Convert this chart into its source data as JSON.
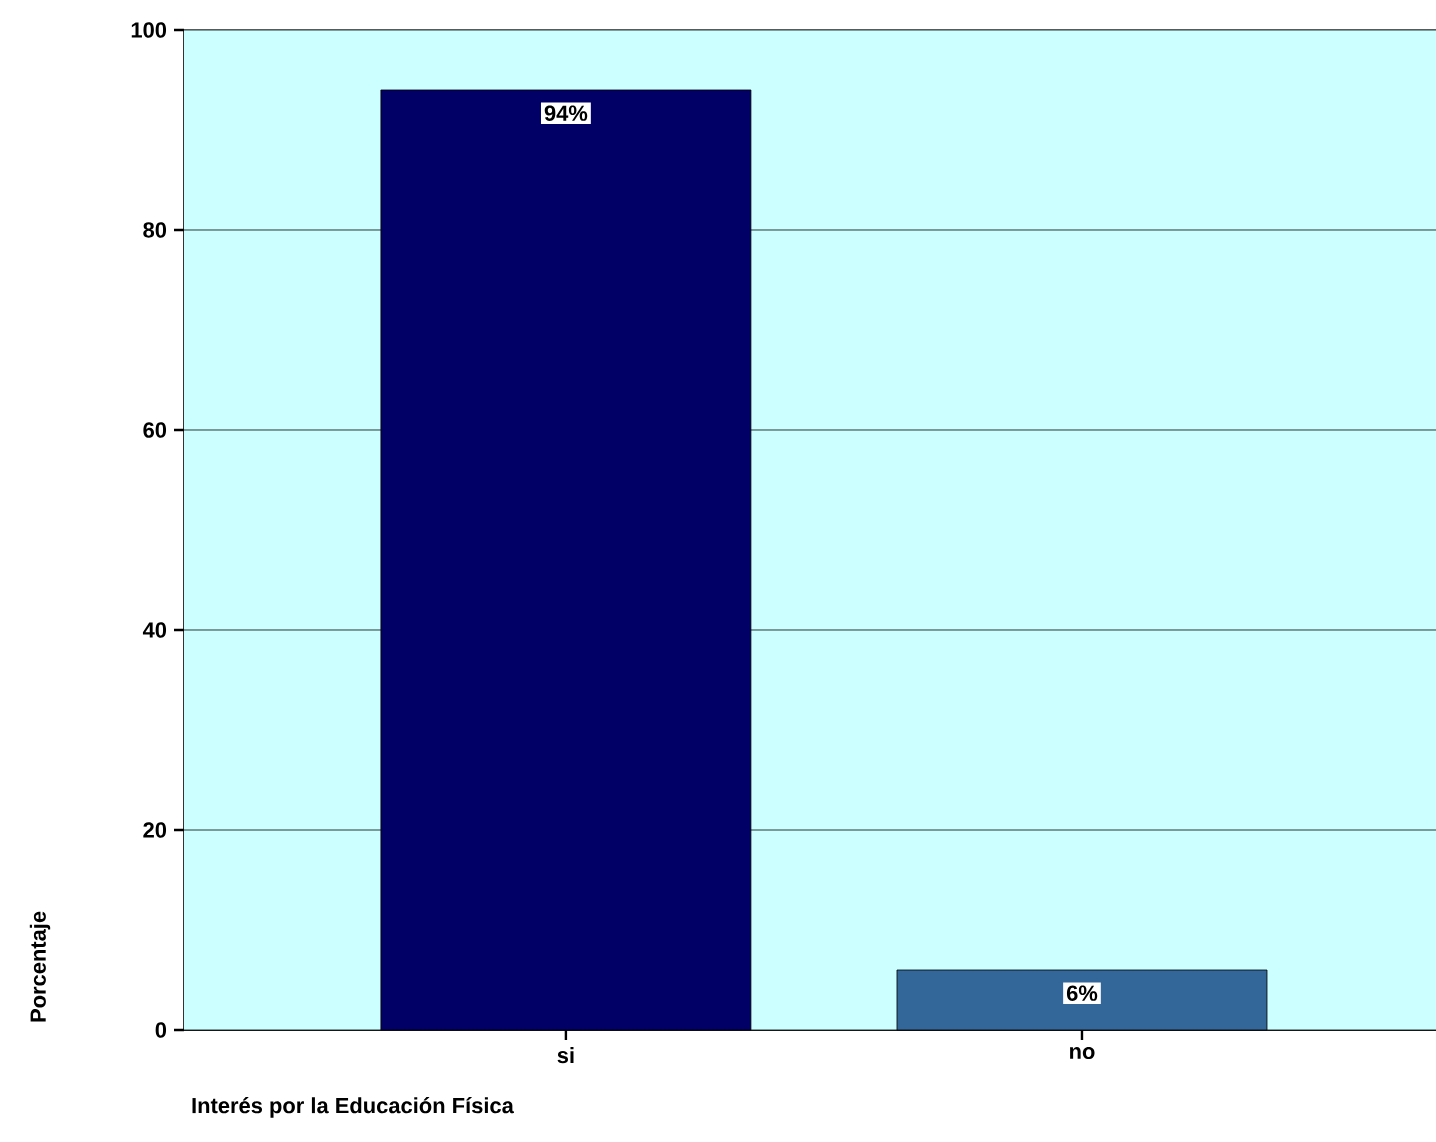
{
  "chart_data": {
    "type": "bar",
    "xlabel": "Interés por la Educación Física",
    "ylabel": "Porcentaje",
    "categories": [
      "si",
      "no"
    ],
    "values": [
      94,
      6
    ],
    "colors": [
      "#000066",
      "#336699"
    ],
    "value_labels": [
      "94%",
      "6%"
    ],
    "ylim": [
      0,
      100
    ],
    "yticks": [
      0,
      20,
      40,
      60,
      80,
      100
    ],
    "grid": "y"
  }
}
